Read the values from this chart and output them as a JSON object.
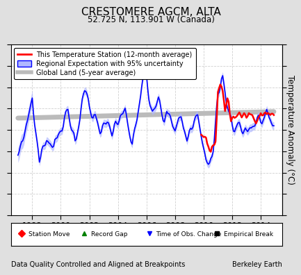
{
  "title": "CRESTOMERE AGCM, ALTA",
  "subtitle": "52.725 N, 113.901 W (Canada)",
  "ylabel": "Temperature Anomaly (°C)",
  "xlabel_bottom": "Data Quality Controlled and Aligned at Breakpoints",
  "xlabel_right": "Berkeley Earth",
  "ylim": [
    -4,
    4
  ],
  "xlim_start": 1996.5,
  "xlim_end": 2015.5,
  "xticks": [
    1998,
    2000,
    2002,
    2004,
    2006,
    2008,
    2010,
    2012,
    2014
  ],
  "yticks": [
    -4,
    -3,
    -2,
    -1,
    0,
    1,
    2,
    3,
    4
  ],
  "background_color": "#e0e0e0",
  "plot_bg_color": "#ffffff",
  "grid_color": "#cccccc",
  "legend_items": [
    {
      "label": "This Temperature Station (12-month average)",
      "color": "red",
      "lw": 2
    },
    {
      "label": "Regional Expectation with 95% uncertainty",
      "color": "blue",
      "lw": 1.5
    },
    {
      "label": "Global Land (5-year average)",
      "color": "#aaaaaa",
      "lw": 4
    }
  ],
  "marker_legend": [
    {
      "marker": "D",
      "color": "red",
      "label": "Station Move"
    },
    {
      "marker": "^",
      "color": "green",
      "label": "Record Gap"
    },
    {
      "marker": "v",
      "color": "blue",
      "label": "Time of Obs. Change"
    },
    {
      "marker": "s",
      "color": "black",
      "label": "Empirical Break"
    }
  ]
}
